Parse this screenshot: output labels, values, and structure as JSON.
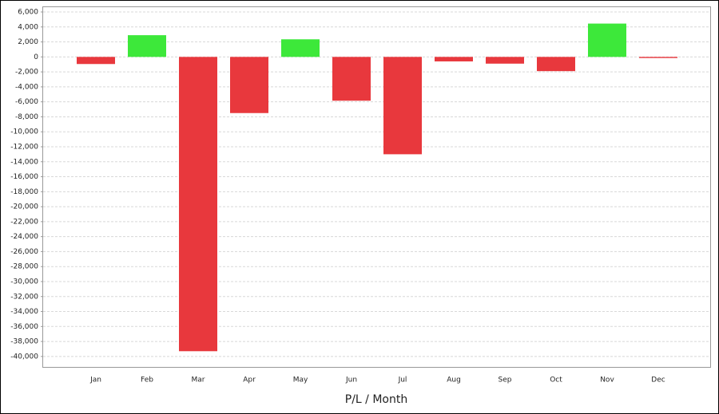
{
  "chart_data": {
    "type": "bar",
    "x_label": "P/L / Month",
    "categories": [
      "Jan",
      "Feb",
      "Mar",
      "Apr",
      "May",
      "Jun",
      "Jul",
      "Aug",
      "Sep",
      "Oct",
      "Nov",
      "Dec"
    ],
    "values": [
      -950,
      2900,
      -39300,
      -7500,
      2350,
      -5850,
      -13000,
      -600,
      -900,
      -1900,
      4450,
      -150
    ],
    "positive_color": "#3de83a",
    "negative_color": "#e8383d",
    "ylim": [
      -41400,
      6640
    ],
    "yticks": [
      {
        "value": 6000,
        "label": "6,000"
      },
      {
        "value": 4000,
        "label": "4,000"
      },
      {
        "value": 2000,
        "label": "2,000"
      },
      0,
      {
        "value": -2000,
        "label": "-2,000"
      },
      {
        "value": -4000,
        "label": "-4,000"
      },
      {
        "value": -6000,
        "label": "-6,000"
      },
      {
        "value": -8000,
        "label": "-8,000"
      },
      {
        "value": -10000,
        "label": "-10,000"
      },
      {
        "value": -12000,
        "label": "-12,000"
      },
      {
        "value": -14000,
        "label": "-14,000"
      },
      {
        "value": -16000,
        "label": "-16,000"
      },
      {
        "value": -18000,
        "label": "-18,000"
      },
      {
        "value": -20000,
        "label": "-20,000"
      },
      {
        "value": -22000,
        "label": "-22,000"
      },
      {
        "value": -24000,
        "label": "-24,000"
      },
      {
        "value": -26000,
        "label": "-26,000"
      },
      {
        "value": -28000,
        "label": "-28,000"
      },
      {
        "value": -30000,
        "label": "-30,000"
      },
      {
        "value": -32000,
        "label": "-32,000"
      },
      {
        "value": -34000,
        "label": "-34,000"
      },
      {
        "value": -36000,
        "label": "-36,000"
      },
      {
        "value": -38000,
        "label": "-38,000"
      },
      {
        "value": -40000,
        "label": "-40,000"
      }
    ],
    "grid": true
  }
}
